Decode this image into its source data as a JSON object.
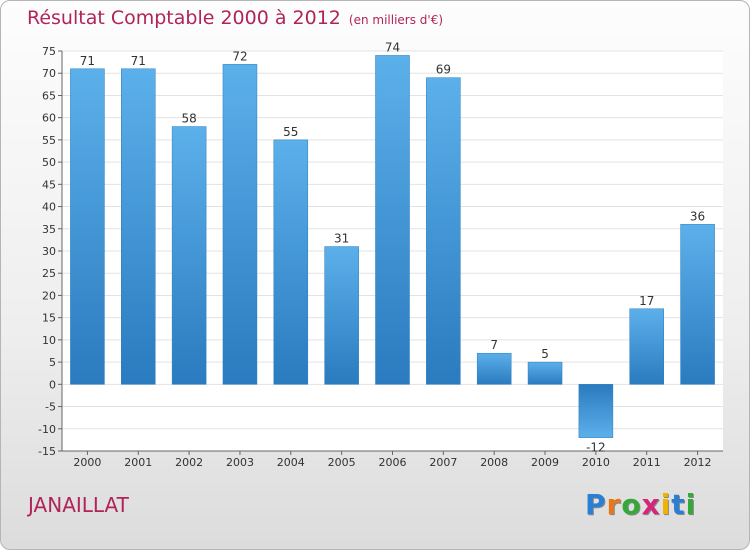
{
  "title": "Résultat Comptable 2000 à 2012",
  "subtitle": "(en milliers d'€)",
  "commune": "JANAILLAT",
  "logo": {
    "text": "Proxiti",
    "letter_colors": [
      "#2a7fd4",
      "#e8771a",
      "#35a83a",
      "#d4267a",
      "#f0b400",
      "#2a7fd4",
      "#35a83a"
    ]
  },
  "colors": {
    "title": "#b0245a",
    "bar_light": "#5cb0ea",
    "bar_dark": "#2a7bbf",
    "plot_bg": "#ffffff",
    "grid": "#e3e3e3"
  },
  "chart_data": {
    "type": "bar",
    "categories": [
      "2000",
      "2001",
      "2002",
      "2003",
      "2004",
      "2005",
      "2006",
      "2007",
      "2008",
      "2009",
      "2010",
      "2011",
      "2012"
    ],
    "values": [
      71,
      71,
      58,
      72,
      55,
      31,
      74,
      69,
      7,
      5,
      -12,
      17,
      36
    ],
    "ylim": [
      -15,
      75
    ],
    "yticks": [
      -15,
      -10,
      -5,
      0,
      5,
      10,
      15,
      20,
      25,
      30,
      35,
      40,
      45,
      50,
      55,
      60,
      65,
      70,
      75
    ],
    "grid": true,
    "title": "Résultat Comptable 2000 à 2012",
    "xlabel": "",
    "ylabel": ""
  }
}
